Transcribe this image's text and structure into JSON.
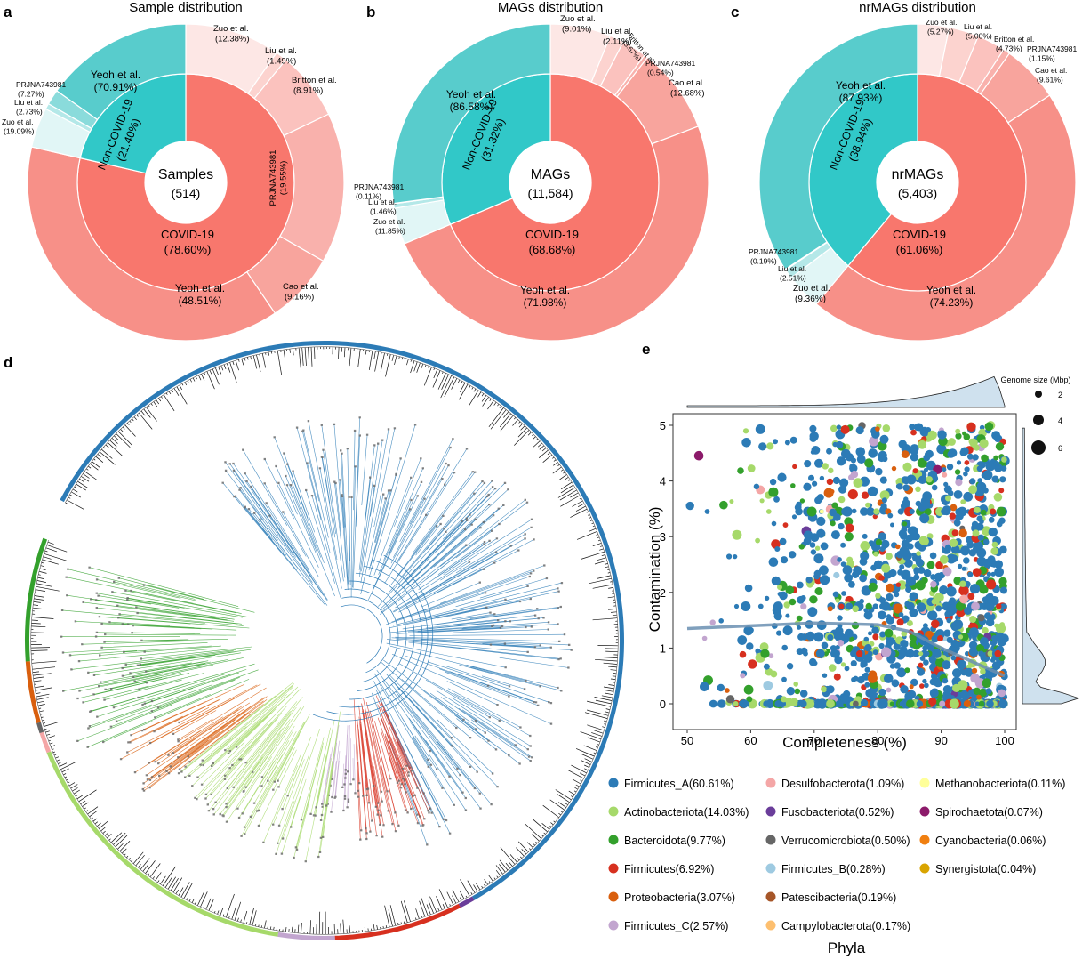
{
  "colors": {
    "covid_inner": "#f8776d",
    "covid_outer": "#f79088",
    "noncovid_inner": "#31c8c8",
    "noncovid_outer": "#58cccc",
    "tree_ring": "#2c7bb6",
    "density_fill": "#cfe1ee"
  },
  "chart_data": [
    {
      "type": "pie",
      "panel": "a",
      "title": "Sample distribution",
      "center_label": "Samples",
      "center_value": "(514)",
      "inner": [
        {
          "name": "Non-COVID-19",
          "pct_label": "(21.40%)",
          "value": 21.4,
          "group": "noncovid"
        },
        {
          "name": "COVID-19",
          "pct_label": "(78.60%)",
          "value": 78.6,
          "group": "covid"
        }
      ],
      "outer": [
        {
          "name": "Zuo et al.",
          "pct_label": "(12.38%)",
          "value": 12.38,
          "group": "covid",
          "lightness": 0.78
        },
        {
          "name": "Liu et al.",
          "pct_label": "(1.49%)",
          "value": 1.49,
          "group": "covid",
          "lightness": 0.6
        },
        {
          "name": "Britton et al.",
          "pct_label": "(8.91%)",
          "value": 8.91,
          "group": "covid",
          "lightness": 0.45
        },
        {
          "name": "PRJNA743981",
          "pct_label": "(19.55%)",
          "value": 19.55,
          "group": "covid",
          "lightness": 0.3
        },
        {
          "name": "Cao et al.",
          "pct_label": "(9.16%)",
          "value": 9.16,
          "group": "covid",
          "lightness": 0.18
        },
        {
          "name": "Yeoh et al.",
          "pct_label": "(48.51%)",
          "value": 48.51,
          "group": "covid",
          "lightness": 0
        },
        {
          "name": "Zuo et al.",
          "pct_label": "(19.09%)",
          "value": 19.09,
          "group": "noncovid",
          "lightness": 0.82
        },
        {
          "name": "Liu et al.",
          "pct_label": "(2.73%)",
          "value": 2.73,
          "group": "noncovid",
          "lightness": 0.55
        },
        {
          "name": "PRJNA743981",
          "pct_label": "(7.27%)",
          "value": 7.27,
          "group": "noncovid",
          "lightness": 0.3
        },
        {
          "name": "Yeoh et al.",
          "pct_label": "(70.91%)",
          "value": 70.91,
          "group": "noncovid",
          "lightness": 0
        }
      ]
    },
    {
      "type": "pie",
      "panel": "b",
      "title": "MAGs distribution",
      "center_label": "MAGs",
      "center_value": "(11,584)",
      "inner": [
        {
          "name": "Non-COVID-19",
          "pct_label": "(31.32%)",
          "value": 31.32,
          "group": "noncovid"
        },
        {
          "name": "COVID-19",
          "pct_label": "(68.68%)",
          "value": 68.68,
          "group": "covid"
        }
      ],
      "outer": [
        {
          "name": "Zuo et al.",
          "pct_label": "(9.01%)",
          "value": 9.01,
          "group": "covid",
          "lightness": 0.78
        },
        {
          "name": "Liu et al.",
          "pct_label": "(2.11%)",
          "value": 2.11,
          "group": "covid",
          "lightness": 0.6
        },
        {
          "name": "Britton et al.",
          "pct_label": "(3.67%)",
          "value": 3.67,
          "group": "covid",
          "lightness": 0.45
        },
        {
          "name": "PRJNA743981",
          "pct_label": "(0.54%)",
          "value": 0.54,
          "group": "covid",
          "lightness": 0.3
        },
        {
          "name": "Cao et al.",
          "pct_label": "(12.68%)",
          "value": 12.68,
          "group": "covid",
          "lightness": 0.18
        },
        {
          "name": "Yeoh et al.",
          "pct_label": "(71.98%)",
          "value": 71.98,
          "group": "covid",
          "lightness": 0
        },
        {
          "name": "Zuo et al.",
          "pct_label": "(11.85%)",
          "value": 11.85,
          "group": "noncovid",
          "lightness": 0.82
        },
        {
          "name": "Liu et al.",
          "pct_label": "(1.46%)",
          "value": 1.46,
          "group": "noncovid",
          "lightness": 0.55
        },
        {
          "name": "PRJNA743981",
          "pct_label": "(0.11%)",
          "value": 0.11,
          "group": "noncovid",
          "lightness": 0.3
        },
        {
          "name": "Yeoh et al.",
          "pct_label": "(86.58%)",
          "value": 86.58,
          "group": "noncovid",
          "lightness": 0
        }
      ]
    },
    {
      "type": "pie",
      "panel": "c",
      "title": "nrMAGs distribution",
      "center_label": "nrMAGs",
      "center_value": "(5,403)",
      "inner": [
        {
          "name": "Non-COVID-19",
          "pct_label": "(38.94%)",
          "value": 38.94,
          "group": "noncovid"
        },
        {
          "name": "COVID-19",
          "pct_label": "(61.06%)",
          "value": 61.06,
          "group": "covid"
        }
      ],
      "outer": [
        {
          "name": "Zuo et al.",
          "pct_label": "(5.27%)",
          "value": 5.27,
          "group": "covid",
          "lightness": 0.78
        },
        {
          "name": "Liu et al.",
          "pct_label": "(5.00%)",
          "value": 5.0,
          "group": "covid",
          "lightness": 0.6
        },
        {
          "name": "Britton et al.",
          "pct_label": "(4.73%)",
          "value": 4.73,
          "group": "covid",
          "lightness": 0.45
        },
        {
          "name": "PRJNA743981",
          "pct_label": "(1.15%)",
          "value": 1.15,
          "group": "covid",
          "lightness": 0.3
        },
        {
          "name": "Cao et al.",
          "pct_label": "(9.61%)",
          "value": 9.61,
          "group": "covid",
          "lightness": 0.18
        },
        {
          "name": "Yeoh et al.",
          "pct_label": "(74.23%)",
          "value": 74.23,
          "group": "covid",
          "lightness": 0
        },
        {
          "name": "Zuo et al.",
          "pct_label": "(9.36%)",
          "value": 9.36,
          "group": "noncovid",
          "lightness": 0.82
        },
        {
          "name": "Liu et al.",
          "pct_label": "(2.51%)",
          "value": 2.51,
          "group": "noncovid",
          "lightness": 0.55
        },
        {
          "name": "PRJNA743981",
          "pct_label": "(0.19%)",
          "value": 0.19,
          "group": "noncovid",
          "lightness": 0.3
        },
        {
          "name": "Yeoh et al.",
          "pct_label": "(87.93%)",
          "value": 87.93,
          "group": "noncovid",
          "lightness": 0
        }
      ]
    },
    {
      "type": "tree",
      "panel": "d",
      "description_ring_sectors": [
        {
          "phylum": "Firmicutes_A",
          "color": "#2c7bb6"
        },
        {
          "phylum": "Firmicutes_B",
          "color": "#9ecae1"
        },
        {
          "phylum": "Fusobacteriota",
          "color": "#6a3d9a"
        },
        {
          "phylum": "Firmicutes",
          "color": "#d7301f"
        },
        {
          "phylum": "Firmicutes_C",
          "color": "#c2a5cf"
        },
        {
          "phylum": "Actinobacteriota",
          "color": "#a6d96a"
        },
        {
          "phylum": "Verrucomicrobiota",
          "color": "#666666"
        },
        {
          "phylum": "Desulfobacterota",
          "color": "#f4a6a6"
        },
        {
          "phylum": "Proteobacteria",
          "color": "#d95f0e"
        },
        {
          "phylum": "Bacteroidota",
          "color": "#33a02c"
        }
      ]
    },
    {
      "type": "scatter",
      "panel": "e",
      "xlabel": "Completeness (%)",
      "ylabel": "Contamination (%)",
      "xlim": [
        50,
        100
      ],
      "ylim": [
        0,
        5
      ],
      "xticks": [
        "50",
        "60",
        "70",
        "80",
        "90",
        "100"
      ],
      "yticks": [
        "0",
        "1",
        "2",
        "3",
        "4",
        "5"
      ],
      "size_legend_title": "Genome size (Mbp)",
      "size_legend": [
        "2",
        "4",
        "6"
      ],
      "legend_title": "Phyla",
      "phyla": [
        {
          "label": "Firmicutes_A(60.61%)",
          "color": "#2c7bb6",
          "share": 60.61
        },
        {
          "label": "Actinobacteriota(14.03%)",
          "color": "#a6d96a",
          "share": 14.03
        },
        {
          "label": "Bacteroidota(9.77%)",
          "color": "#33a02c",
          "share": 9.77
        },
        {
          "label": "Firmicutes(6.92%)",
          "color": "#d7301f",
          "share": 6.92
        },
        {
          "label": "Proteobacteria(3.07%)",
          "color": "#d95f0e",
          "share": 3.07
        },
        {
          "label": "Firmicutes_C(2.57%)",
          "color": "#c2a5cf",
          "share": 2.57
        },
        {
          "label": "Desulfobacterota(1.09%)",
          "color": "#f4a6a6",
          "share": 1.09
        },
        {
          "label": "Fusobacteriota(0.52%)",
          "color": "#6a3d9a",
          "share": 0.52
        },
        {
          "label": "Verrucomicrobiota(0.50%)",
          "color": "#666666",
          "share": 0.5
        },
        {
          "label": "Firmicutes_B(0.28%)",
          "color": "#9ecae1",
          "share": 0.28
        },
        {
          "label": "Patescibacteria(0.19%)",
          "color": "#a65628",
          "share": 0.19
        },
        {
          "label": "Campylobacterota(0.17%)",
          "color": "#fdbf6f",
          "share": 0.17
        },
        {
          "label": "Methanobacteriota(0.11%)",
          "color": "#ffff99",
          "share": 0.11
        },
        {
          "label": "Spirochaetota(0.07%)",
          "color": "#8c1a6a",
          "share": 0.07
        },
        {
          "label": "Cyanobacteria(0.06%)",
          "color": "#f07f10",
          "share": 0.06
        },
        {
          "label": "Synergistota(0.04%)",
          "color": "#d9a400",
          "share": 0.04
        }
      ],
      "trend_line": {
        "x": [
          50,
          60,
          70,
          80,
          85,
          90,
          95,
          100
        ],
        "y": [
          1.35,
          1.4,
          1.45,
          1.42,
          1.3,
          1.0,
          0.75,
          0.5
        ]
      }
    }
  ],
  "panel_letters": {
    "a": "a",
    "b": "b",
    "c": "c",
    "d": "d",
    "e": "e"
  }
}
